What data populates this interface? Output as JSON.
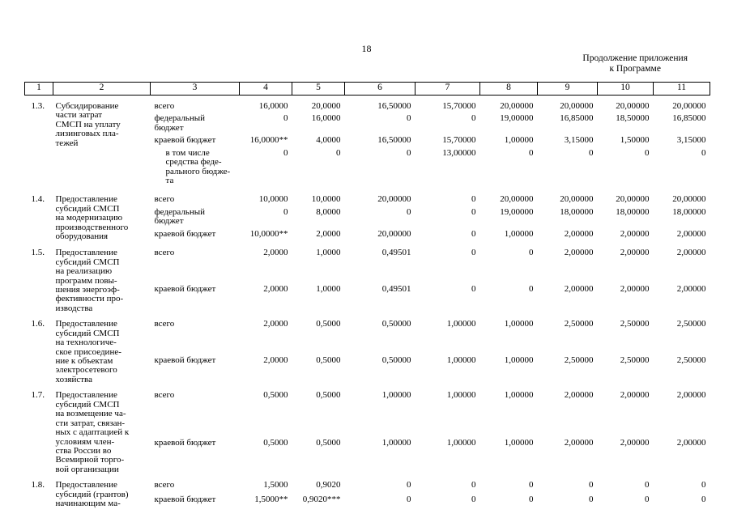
{
  "page": {
    "number": "18",
    "continuation": [
      "Продолжение приложения",
      "к Программе"
    ]
  },
  "table": {
    "header_numbers": [
      "1",
      "2",
      "3",
      "4",
      "5",
      "6",
      "7",
      "8",
      "9",
      "10",
      "11"
    ],
    "groups": [
      {
        "num": "1.3.",
        "title": "Субсидирование\nчасти затрат\nСМСП на уплату\nлизинговых пла-\nтежей",
        "rows": [
          {
            "label": "всего",
            "indent": false,
            "values": [
              "16,0000",
              "20,0000",
              "16,50000",
              "15,70000",
              "20,00000",
              "20,00000",
              "20,00000",
              "20,00000"
            ]
          },
          {
            "label": "федеральный\nбюджет",
            "indent": false,
            "values": [
              "0",
              "16,0000",
              "0",
              "0",
              "19,00000",
              "16,85000",
              "18,50000",
              "16,85000"
            ]
          },
          {
            "label": "краевой бюджет",
            "indent": false,
            "values": [
              "16,0000**",
              "4,0000",
              "16,50000",
              "15,70000",
              "1,00000",
              "3,15000",
              "1,50000",
              "3,15000"
            ]
          },
          {
            "label": "в том числе\nсредства феде-\nрального бюдже-\nта",
            "indent": true,
            "values": [
              "0",
              "0",
              "0",
              "13,00000",
              "0",
              "0",
              "0",
              "0"
            ]
          }
        ]
      },
      {
        "num": "1.4.",
        "title": "Предоставление\nсубсидий СМСП\nна модернизацию\nпроизводственного\nоборудования",
        "rows": [
          {
            "label": "всего",
            "indent": false,
            "values": [
              "10,0000",
              "10,0000",
              "20,00000",
              "0",
              "20,00000",
              "20,00000",
              "20,00000",
              "20,00000"
            ]
          },
          {
            "label": "федеральный\nбюджет",
            "indent": false,
            "values": [
              "0",
              "8,0000",
              "0",
              "0",
              "19,00000",
              "18,00000",
              "18,00000",
              "18,00000"
            ]
          },
          {
            "label": "краевой бюджет",
            "indent": false,
            "values": [
              "10,0000**",
              "2,0000",
              "20,00000",
              "0",
              "1,00000",
              "2,00000",
              "2,00000",
              "2,00000"
            ]
          }
        ]
      },
      {
        "num": "1.5.",
        "title": "Предоставление\nсубсидий СМСП\nна реализацию\nпрограмм повы-\nшения энергоэф-\nфективности про-\nизводства",
        "rows": [
          {
            "label": "всего",
            "indent": false,
            "values": [
              "2,0000",
              "1,0000",
              "0,49501",
              "0",
              "0",
              "2,00000",
              "2,00000",
              "2,00000"
            ]
          },
          {
            "label": "краевой бюджет",
            "indent": false,
            "values": [
              "2,0000",
              "1,0000",
              "0,49501",
              "0",
              "0",
              "2,00000",
              "2,00000",
              "2,00000"
            ]
          }
        ]
      },
      {
        "num": "1.6.",
        "title": "Предоставление\nсубсидий СМСП\nна технологиче-\nское присоедине-\nние к объектам\nэлектросетевого\nхозяйства",
        "rows": [
          {
            "label": "всего",
            "indent": false,
            "values": [
              "2,0000",
              "0,5000",
              "0,50000",
              "1,00000",
              "1,00000",
              "2,50000",
              "2,50000",
              "2,50000"
            ]
          },
          {
            "label": "краевой бюджет",
            "indent": false,
            "values": [
              "2,0000",
              "0,5000",
              "0,50000",
              "1,00000",
              "1,00000",
              "2,50000",
              "2,50000",
              "2,50000"
            ]
          }
        ]
      },
      {
        "num": "1.7.",
        "title": "Предоставление\nсубсидий СМСП\nна возмещение ча-\nсти затрат, связан-\nных с адаптацией к\nусловиям  член-\nства России во\nВсемирной торго-\nвой организации",
        "rows": [
          {
            "label": "всего",
            "indent": false,
            "values": [
              "0,5000",
              "0,5000",
              "1,00000",
              "1,00000",
              "1,00000",
              "2,00000",
              "2,00000",
              "2,00000"
            ]
          },
          {
            "label": "краевой бюджет",
            "indent": false,
            "values": [
              "0,5000",
              "0,5000",
              "1,00000",
              "1,00000",
              "1,00000",
              "2,00000",
              "2,00000",
              "2,00000"
            ]
          }
        ]
      },
      {
        "num": "1.8.",
        "title": "Предоставление\nсубсидий (грантов)\nначинающим ма-",
        "rows": [
          {
            "label": "всего",
            "indent": false,
            "values": [
              "1,5000",
              "0,9020",
              "0",
              "0",
              "0",
              "0",
              "0",
              "0"
            ]
          },
          {
            "label": "краевой бюджет",
            "indent": false,
            "values": [
              "1,5000**",
              "0,9020***",
              "0",
              "0",
              "0",
              "0",
              "0",
              "0"
            ]
          }
        ]
      }
    ]
  }
}
